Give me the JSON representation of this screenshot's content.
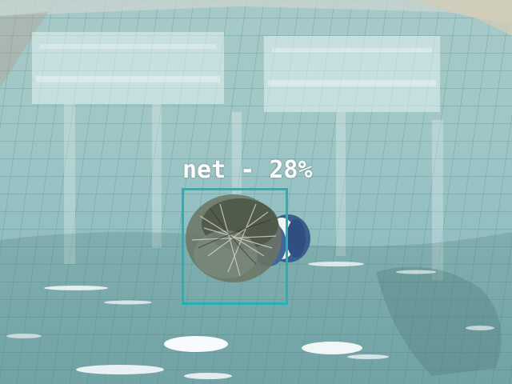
{
  "detection": {
    "label": "net - 28%",
    "box_color": "#22b4b4"
  },
  "scene": {
    "water_color": "#8fc3c2",
    "object_colors": [
      "#3a5f8f",
      "#ffffff",
      "#5a5a4a"
    ]
  }
}
